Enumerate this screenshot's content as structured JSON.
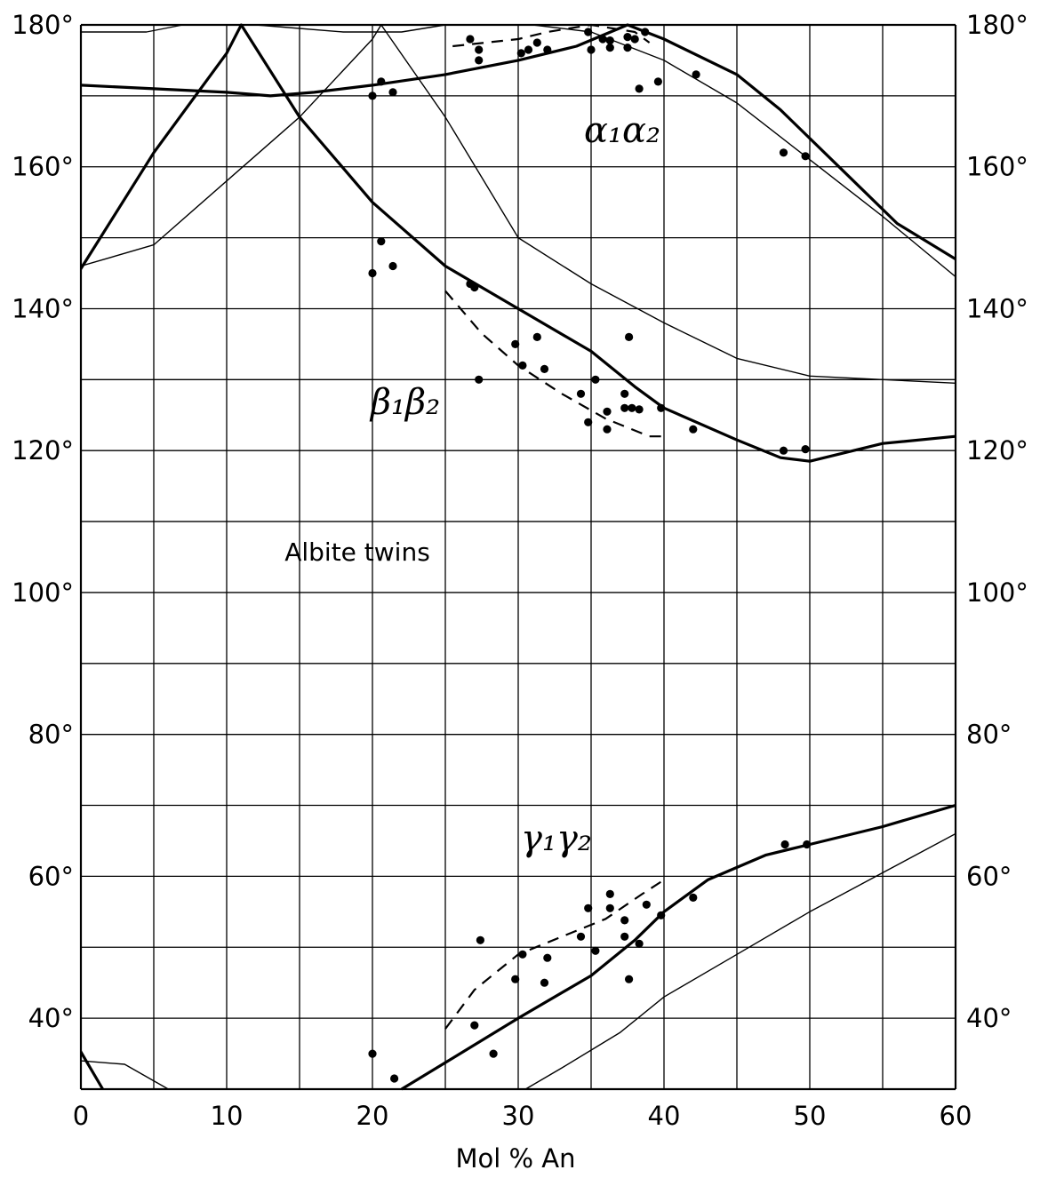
{
  "chart_data": {
    "type": "line",
    "xlabel": "Mol % An",
    "xlim": [
      0,
      60
    ],
    "ylim": [
      30,
      180
    ],
    "x_ticks": [
      "0",
      "10",
      "20",
      "30",
      "40",
      "50",
      "60"
    ],
    "y_ticks_left": [
      "40°",
      "60°",
      "80°",
      "100°",
      "120°",
      "140°",
      "160°",
      "180°"
    ],
    "y_ticks_right": [
      "40°",
      "60°",
      "80°",
      "100°",
      "120°",
      "140°",
      "160°",
      "180°"
    ],
    "annotations": {
      "title": "Albite twins",
      "alpha": "α₁α₂",
      "beta": "β₁β₂",
      "gamma": "γ₁γ₂"
    },
    "grid": true,
    "series": [
      {
        "style": "thick",
        "values": [
          [
            0,
            171.5
          ],
          [
            5,
            171
          ],
          [
            10,
            170.5
          ],
          [
            13,
            170
          ],
          [
            16,
            170.5
          ],
          [
            20,
            171.5
          ],
          [
            25,
            173
          ],
          [
            30,
            175
          ],
          [
            34,
            177
          ],
          [
            37.5,
            180
          ],
          [
            40,
            178
          ],
          [
            45,
            173
          ],
          [
            48,
            168
          ],
          [
            52,
            160
          ],
          [
            56,
            152
          ],
          [
            60,
            147
          ]
        ]
      },
      {
        "style": "thick",
        "values": [
          [
            -0.5,
            144
          ],
          [
            5,
            162
          ],
          [
            10,
            176
          ],
          [
            11,
            180
          ],
          [
            15,
            167
          ],
          [
            20,
            155
          ],
          [
            25,
            146
          ],
          [
            30,
            140
          ],
          [
            35,
            134
          ],
          [
            38,
            129
          ],
          [
            40,
            126
          ],
          [
            45,
            121.5
          ],
          [
            48,
            119
          ],
          [
            50,
            118.5
          ],
          [
            55,
            121
          ],
          [
            60,
            122
          ]
        ]
      },
      {
        "style": "thick",
        "values": [
          [
            22,
            30
          ],
          [
            26,
            35
          ],
          [
            30,
            40
          ],
          [
            35,
            46
          ],
          [
            38,
            51
          ],
          [
            40,
            55
          ],
          [
            43,
            59.5
          ],
          [
            47,
            63
          ],
          [
            50,
            64.5
          ],
          [
            55,
            67
          ],
          [
            60,
            70
          ]
        ]
      },
      {
        "style": "thick",
        "values": [
          [
            -0.5,
            37
          ],
          [
            1.5,
            30
          ]
        ]
      },
      {
        "style": "thin",
        "values": [
          [
            0,
            179
          ],
          [
            4.5,
            179
          ],
          [
            7,
            180
          ],
          [
            12,
            180
          ],
          [
            18,
            179
          ],
          [
            22,
            179
          ],
          [
            25,
            180
          ],
          [
            31,
            180
          ],
          [
            35,
            179
          ],
          [
            40,
            175
          ],
          [
            45,
            169
          ],
          [
            50,
            161
          ],
          [
            55,
            153
          ],
          [
            60,
            144.5
          ]
        ]
      },
      {
        "style": "thin",
        "values": [
          [
            0,
            146
          ],
          [
            5,
            149
          ],
          [
            10,
            158
          ],
          [
            15,
            167
          ],
          [
            20,
            178
          ],
          [
            20.6,
            180
          ],
          [
            25,
            167
          ],
          [
            30,
            150
          ],
          [
            35,
            143.5
          ],
          [
            40,
            138
          ],
          [
            45,
            133
          ],
          [
            50,
            130.5
          ],
          [
            55,
            130
          ],
          [
            60,
            129.5
          ]
        ]
      },
      {
        "style": "thin",
        "values": [
          [
            0,
            34
          ],
          [
            3,
            33.5
          ],
          [
            6,
            30
          ]
        ]
      },
      {
        "style": "thin",
        "values": [
          [
            30.5,
            30
          ],
          [
            33,
            33
          ],
          [
            37,
            38
          ],
          [
            40,
            43
          ],
          [
            45,
            49
          ],
          [
            50,
            55
          ],
          [
            55,
            60.5
          ],
          [
            60,
            66
          ]
        ]
      },
      {
        "style": "dashed",
        "values": [
          [
            25.5,
            177
          ],
          [
            30,
            178
          ],
          [
            32,
            179
          ],
          [
            35,
            180
          ],
          [
            38,
            179
          ],
          [
            39,
            177.5
          ]
        ]
      },
      {
        "style": "dashed",
        "values": [
          [
            25,
            142.5
          ],
          [
            27.5,
            136.5
          ],
          [
            30,
            132
          ],
          [
            33,
            128
          ],
          [
            36,
            124.5
          ],
          [
            39,
            122
          ],
          [
            40,
            122
          ]
        ]
      },
      {
        "style": "dashed",
        "values": [
          [
            25,
            38.5
          ],
          [
            27,
            44
          ],
          [
            28.5,
            46.5
          ],
          [
            30,
            49
          ],
          [
            33,
            51.5
          ],
          [
            36,
            54
          ],
          [
            38.5,
            57.5
          ],
          [
            40,
            59.5
          ]
        ]
      }
    ],
    "points": [
      [
        26.7,
        178
      ],
      [
        27.3,
        176.5
      ],
      [
        27.3,
        175
      ],
      [
        30.2,
        176
      ],
      [
        30.7,
        176.5
      ],
      [
        31.3,
        177.5
      ],
      [
        32,
        176.5
      ],
      [
        34.8,
        179
      ],
      [
        35,
        176.5
      ],
      [
        35.8,
        178
      ],
      [
        36.3,
        177.8
      ],
      [
        36.3,
        176.8
      ],
      [
        37.5,
        178.3
      ],
      [
        37.5,
        176.8
      ],
      [
        38,
        178
      ],
      [
        38.3,
        171
      ],
      [
        38.7,
        179
      ],
      [
        39.6,
        172
      ],
      [
        42.2,
        173
      ],
      [
        48.2,
        162
      ],
      [
        49.7,
        161.5
      ],
      [
        20,
        170
      ],
      [
        20.6,
        172
      ],
      [
        21.4,
        170.5
      ],
      [
        20,
        145
      ],
      [
        20.6,
        149.5
      ],
      [
        21.4,
        146
      ],
      [
        26.7,
        143.5
      ],
      [
        27,
        143
      ],
      [
        27.3,
        130
      ],
      [
        29.8,
        135
      ],
      [
        30.3,
        132
      ],
      [
        31.3,
        136
      ],
      [
        31.8,
        131.5
      ],
      [
        34.3,
        128
      ],
      [
        34.8,
        124
      ],
      [
        35.3,
        130
      ],
      [
        36.1,
        123
      ],
      [
        36.1,
        125.5
      ],
      [
        37.3,
        128
      ],
      [
        37.3,
        126
      ],
      [
        37.6,
        136
      ],
      [
        37.8,
        126
      ],
      [
        38.3,
        125.8
      ],
      [
        39.8,
        126
      ],
      [
        42,
        123
      ],
      [
        48.2,
        120
      ],
      [
        49.7,
        120.2
      ],
      [
        20,
        35
      ],
      [
        21.5,
        31.5
      ],
      [
        27,
        39
      ],
      [
        27.4,
        51
      ],
      [
        28.3,
        35
      ],
      [
        29.8,
        45.5
      ],
      [
        30.3,
        49
      ],
      [
        31.8,
        45
      ],
      [
        32,
        48.5
      ],
      [
        34.3,
        51.5
      ],
      [
        34.8,
        55.5
      ],
      [
        35.3,
        49.5
      ],
      [
        36.3,
        57.5
      ],
      [
        36.3,
        55.5
      ],
      [
        37.3,
        53.8
      ],
      [
        37.3,
        51.5
      ],
      [
        37.6,
        45.5
      ],
      [
        38.3,
        50.5
      ],
      [
        38.8,
        56
      ],
      [
        39.8,
        54.5
      ],
      [
        42,
        57
      ],
      [
        48.3,
        64.5
      ],
      [
        49.8,
        64.5
      ]
    ]
  }
}
